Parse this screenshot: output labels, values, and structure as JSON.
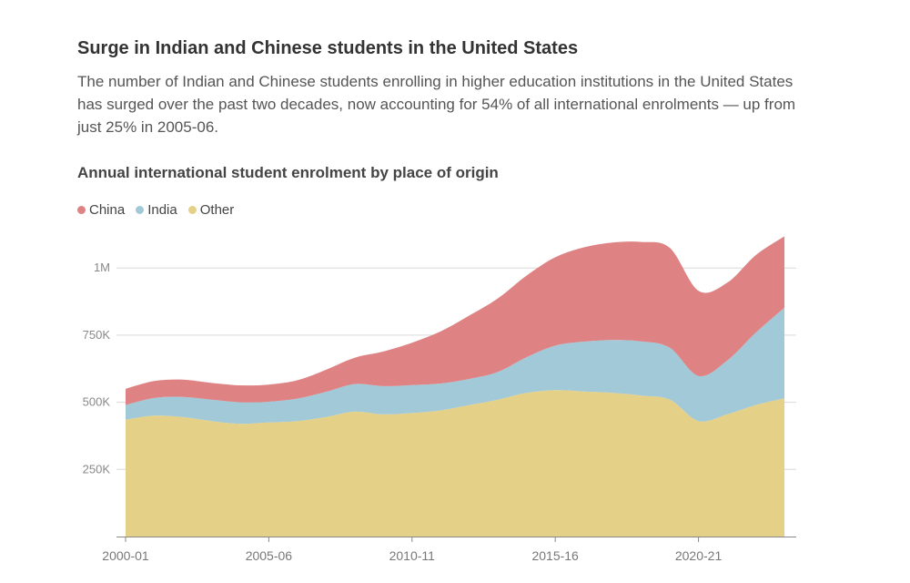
{
  "header": {
    "title": "Surge in Indian and Chinese students in the United States",
    "subtitle": "The number of Indian and Chinese students enrolling in higher education institutions in the United States has surged over the past two decades, now accounting for 54% of all international enrolments — up from just 25% in 2005-06.",
    "chart_title": "Annual international student enrolment by place of origin"
  },
  "chart_data": {
    "type": "area",
    "stacked": true,
    "x": [
      "2000-01",
      "2001-02",
      "2002-03",
      "2003-04",
      "2004-05",
      "2005-06",
      "2006-07",
      "2007-08",
      "2008-09",
      "2009-10",
      "2010-11",
      "2011-12",
      "2012-13",
      "2013-14",
      "2014-15",
      "2015-16",
      "2016-17",
      "2017-18",
      "2018-19",
      "2019-20",
      "2020-21",
      "2021-22",
      "2022-23",
      "2023-24"
    ],
    "x_tick_labels": [
      "2000-01",
      "2005-06",
      "2010-11",
      "2015-16",
      "2020-21"
    ],
    "y_ticks": [
      250000,
      500000,
      750000,
      1000000
    ],
    "y_tick_labels": [
      "250K",
      "500K",
      "750K",
      "1M"
    ],
    "ylim": [
      0,
      1150000
    ],
    "grid": true,
    "legend_position": "top-left",
    "series": [
      {
        "name": "Other",
        "color": "#e5d088",
        "values": [
          435000,
          450000,
          445000,
          430000,
          420000,
          425000,
          430000,
          445000,
          465000,
          455000,
          460000,
          470000,
          490000,
          510000,
          535000,
          545000,
          540000,
          535000,
          525000,
          510000,
          430000,
          455000,
          490000,
          515000
        ]
      },
      {
        "name": "India",
        "color": "#a2c9d8",
        "values": [
          55000,
          66000,
          75000,
          80000,
          80000,
          77000,
          84000,
          94000,
          103000,
          105000,
          104000,
          100000,
          97000,
          103000,
          133000,
          166000,
          186000,
          197000,
          202000,
          193000,
          168000,
          200000,
          269000,
          337000
        ]
      },
      {
        "name": "China",
        "color": "#df8284",
        "values": [
          60000,
          63000,
          64000,
          62000,
          63000,
          64000,
          68000,
          82000,
          98000,
          129000,
          158000,
          194000,
          236000,
          274000,
          304000,
          329000,
          351000,
          363000,
          370000,
          372000,
          317000,
          290000,
          289000,
          266000
        ]
      }
    ]
  }
}
